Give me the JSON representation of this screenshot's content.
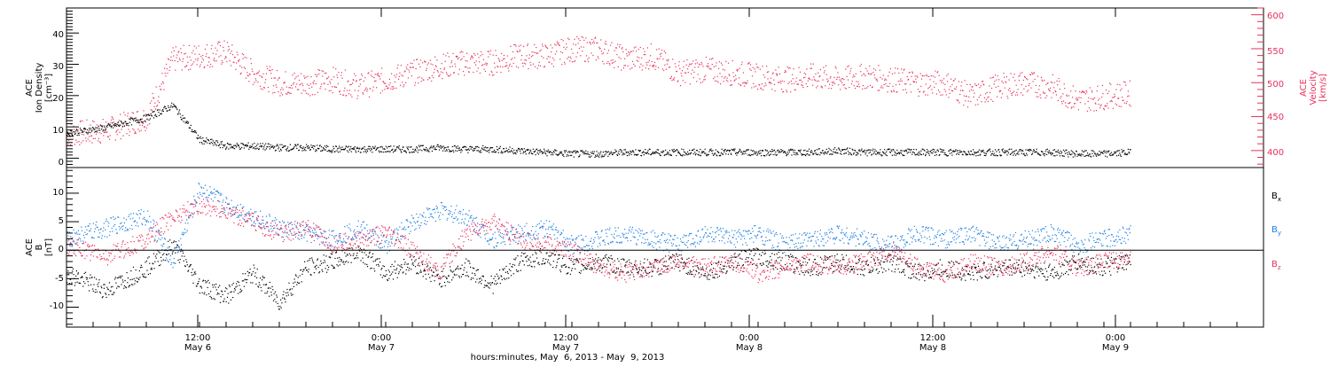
{
  "colors": {
    "black": "#000000",
    "red": "#e8305a",
    "blue": "#1f7fe0"
  },
  "chart_data": [
    {
      "type": "scatter",
      "panel": "top",
      "ylabel_left": [
        "ACE",
        "Ion Density",
        "[cm⁻³]"
      ],
      "ylabel_right": [
        "ACE",
        "Velocity",
        "[km/s]"
      ],
      "left_yticks": [
        "0",
        "10",
        "20",
        "30",
        "40"
      ],
      "right_yticks": [
        "400",
        "450",
        "500",
        "550",
        "600"
      ],
      "ylim_left": [
        -3,
        48
      ],
      "ylim_right": [
        375,
        610
      ],
      "series": [
        {
          "color": "#000000",
          "axis": "left",
          "x": [
            0,
            3,
            6,
            8,
            10,
            12,
            14,
            16,
            18,
            20,
            22,
            24,
            26,
            28,
            30,
            32,
            34,
            36,
            38,
            40,
            42,
            44,
            46,
            48,
            50,
            52,
            54,
            56,
            58,
            60,
            62,
            64,
            66,
            68,
            70,
            72,
            74,
            76,
            78,
            80
          ],
          "y": [
            8,
            10,
            13,
            17,
            6,
            4,
            4,
            3.5,
            3.5,
            3,
            3,
            3,
            3,
            3.5,
            3,
            3,
            2.5,
            2,
            1.5,
            1.5,
            2,
            2,
            2,
            2,
            2,
            2,
            2,
            2,
            2.5,
            2,
            2,
            2,
            2,
            2,
            2,
            2,
            2,
            1.5,
            1.5,
            2
          ]
        },
        {
          "color": "#e8305a",
          "axis": "right",
          "x": [
            0,
            3,
            6,
            8,
            10,
            12,
            14,
            16,
            18,
            20,
            22,
            24,
            26,
            28,
            30,
            32,
            34,
            36,
            38,
            40,
            42,
            44,
            46,
            48,
            50,
            52,
            54,
            56,
            58,
            60,
            62,
            64,
            66,
            68,
            70,
            72,
            74,
            76,
            78,
            80
          ],
          "y": [
            425,
            430,
            450,
            535,
            540,
            545,
            515,
            500,
            500,
            505,
            495,
            505,
            515,
            525,
            530,
            530,
            540,
            540,
            550,
            550,
            535,
            540,
            515,
            520,
            515,
            510,
            505,
            510,
            505,
            510,
            505,
            500,
            500,
            480,
            495,
            500,
            495,
            475,
            480,
            485
          ]
        }
      ]
    },
    {
      "type": "scatter",
      "panel": "bottom",
      "ylabel_left": [
        "ACE",
        "B",
        "[nT]"
      ],
      "left_yticks": [
        "-10",
        "-5",
        "0",
        "5",
        "10"
      ],
      "ylim": [
        -13.5,
        14.5
      ],
      "zero_line": true,
      "series": [
        {
          "name": "Bx",
          "label_main": "B",
          "label_sub": "x",
          "color": "#000000",
          "x": [
            0,
            3,
            6,
            8,
            10,
            12,
            14,
            16,
            18,
            20,
            22,
            24,
            26,
            28,
            30,
            32,
            34,
            36,
            38,
            40,
            42,
            44,
            46,
            48,
            50,
            52,
            54,
            56,
            58,
            60,
            62,
            64,
            66,
            68,
            70,
            72,
            74,
            76,
            78,
            80
          ],
          "y": [
            -4,
            -7,
            -3,
            1,
            -6,
            -8,
            -4,
            -9,
            -3,
            -2,
            0,
            -4,
            -2,
            -5,
            -3,
            -6,
            -2,
            -1,
            -3,
            -2,
            -3,
            -3,
            -2,
            -4,
            -2,
            -1,
            -2,
            -3,
            -2,
            -3,
            -2,
            -4,
            -3,
            -4,
            -3,
            -3,
            -4,
            -2,
            -3,
            -2
          ]
        },
        {
          "name": "By",
          "label_main": "B",
          "label_sub": "y",
          "color": "#1f7fe0",
          "x": [
            0,
            3,
            6,
            8,
            10,
            12,
            14,
            16,
            18,
            20,
            22,
            24,
            26,
            28,
            30,
            32,
            34,
            36,
            38,
            40,
            42,
            44,
            46,
            48,
            50,
            52,
            54,
            56,
            58,
            60,
            62,
            64,
            66,
            68,
            70,
            72,
            74,
            76,
            78,
            80
          ],
          "y": [
            2,
            4,
            6,
            -2,
            11,
            8,
            6,
            4,
            3,
            2,
            4,
            1,
            5,
            7,
            6,
            2,
            3,
            4,
            1,
            2,
            3,
            2,
            1,
            3,
            2,
            3,
            1,
            2,
            3,
            2,
            1,
            3,
            2,
            3,
            1,
            2,
            3,
            1,
            2,
            3
          ]
        },
        {
          "name": "Bz",
          "label_main": "B",
          "label_sub": "z",
          "color": "#e8305a",
          "x": [
            0,
            3,
            6,
            8,
            10,
            12,
            14,
            16,
            18,
            20,
            22,
            24,
            26,
            28,
            30,
            32,
            34,
            36,
            38,
            40,
            42,
            44,
            46,
            48,
            50,
            52,
            54,
            56,
            58,
            60,
            62,
            64,
            66,
            68,
            70,
            72,
            74,
            76,
            78,
            80
          ],
          "y": [
            1,
            -1,
            2,
            6,
            8,
            7,
            5,
            3,
            4,
            1,
            2,
            3,
            0,
            -4,
            3,
            5,
            2,
            1,
            0,
            -3,
            -4,
            -3,
            -2,
            -3,
            -2,
            -4,
            -3,
            -2,
            -3,
            -2,
            0,
            -3,
            -4,
            -2,
            -3,
            -2,
            0,
            -3,
            -2,
            -1
          ]
        }
      ]
    }
  ],
  "x_axis": {
    "ticks": [
      {
        "time": "12:00",
        "date": "May 6"
      },
      {
        "time": "0:00",
        "date": "May 7"
      },
      {
        "time": "12:00",
        "date": "May 7"
      },
      {
        "time": "0:00",
        "date": "May 8"
      },
      {
        "time": "12:00",
        "date": "May 8"
      },
      {
        "time": "0:00",
        "date": "May 9"
      }
    ],
    "label": "hours:minutes, May  6, 2013 - May  9, 2013"
  }
}
